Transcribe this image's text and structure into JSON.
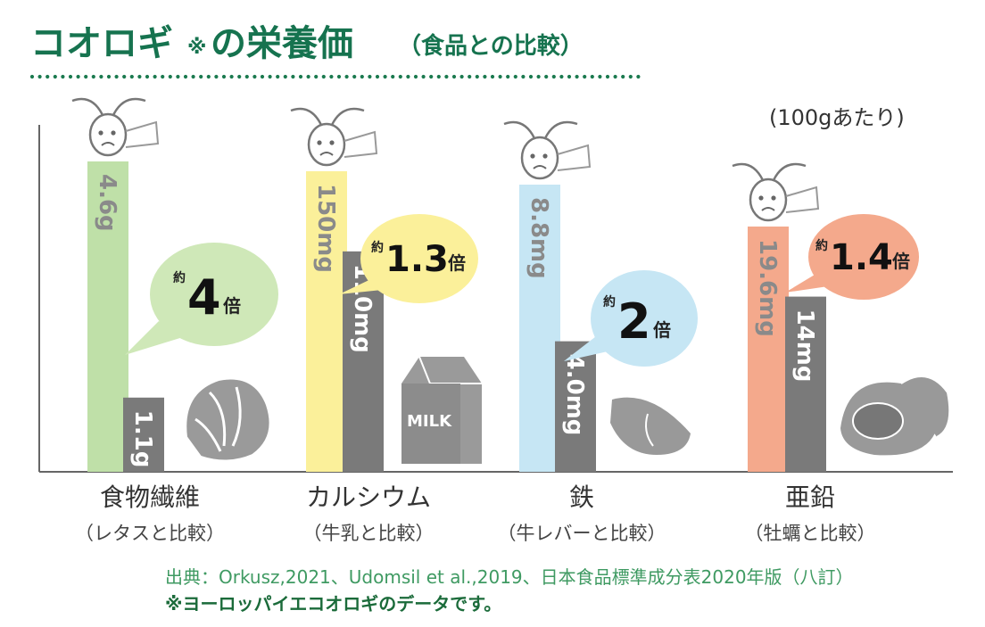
{
  "title": {
    "main": "コオロギ",
    "mark": "※",
    "suffix": "の栄養価",
    "sub": "（食品との比較）"
  },
  "unit_note": "(100gあたり)",
  "source_line": "出典：Orkusz,2021、Udomsil et al.,2019、日本食品標準成分表2020年版（八訂）",
  "footnote": "※ヨーロッパイエコオロギのデータです。",
  "colors": {
    "title_green": "#16734f",
    "dots": "#1b7a4f",
    "axis": "#666666",
    "comparison_bar": "#7a7a7a",
    "fiber": "#bfe0a8",
    "calcium": "#fbf09a",
    "iron": "#c6e6f4",
    "zinc": "#f4a98c",
    "source_text": "#3f9a62"
  },
  "chart_data": {
    "type": "bar",
    "note": "(100gあたり)",
    "groups": [
      {
        "category": "食物繊維",
        "comparison_label": "（レタスと比較）",
        "cricket_value": 4.6,
        "cricket_label": "4.6g",
        "food_value": 1.1,
        "food_label": "1.1g",
        "ratio_prefix": "約",
        "ratio_value": "4",
        "ratio_suffix": "倍",
        "cricket_color": "#bfe0a8",
        "bubble_color": "#cfe8b8",
        "food_icon": "lettuce-icon"
      },
      {
        "category": "カルシウム",
        "comparison_label": "（牛乳と比較）",
        "cricket_value": 150,
        "cricket_label": "150mg",
        "food_value": 110,
        "food_label": "110mg",
        "ratio_prefix": "約",
        "ratio_value": "1.3",
        "ratio_suffix": "倍",
        "cricket_color": "#fbf09a",
        "bubble_color": "#fbf09a",
        "food_icon": "milk-carton-icon",
        "milk_text": "MILK"
      },
      {
        "category": "鉄",
        "comparison_label": "（牛レバーと比較）",
        "cricket_value": 8.8,
        "cricket_label": "8.8mg",
        "food_value": 4.0,
        "food_label": "4.0mg",
        "ratio_prefix": "約",
        "ratio_value": "2",
        "ratio_suffix": "倍",
        "cricket_color": "#c6e6f4",
        "bubble_color": "#c6e6f4",
        "food_icon": "beef-liver-icon"
      },
      {
        "category": "亜鉛",
        "comparison_label": "（牡蠣と比較）",
        "cricket_value": 19.6,
        "cricket_label": "19.6mg",
        "food_value": 14,
        "food_label": "14mg",
        "ratio_prefix": "約",
        "ratio_value": "1.4",
        "ratio_suffix": "倍",
        "cricket_color": "#f4a98c",
        "bubble_color": "#f4a98c",
        "food_icon": "oyster-icon"
      }
    ]
  }
}
